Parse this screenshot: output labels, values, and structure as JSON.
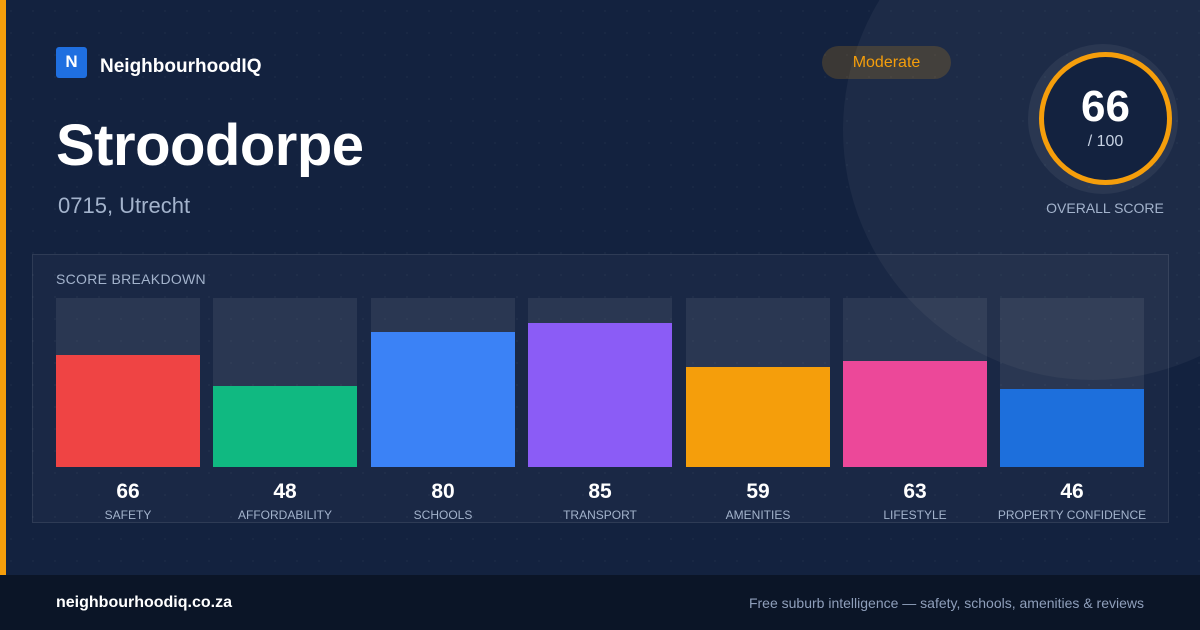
{
  "brand": {
    "logo_letter": "N",
    "name": "NeighbourhoodIQ"
  },
  "suburb": {
    "name": "Stroodorpe",
    "location": "0715, Utrecht"
  },
  "rating": {
    "badge": "Moderate",
    "score": "66",
    "max": "/ 100",
    "label": "OVERALL SCORE"
  },
  "breakdown": {
    "title": "SCORE BREAKDOWN",
    "max": 100,
    "items": [
      {
        "label": "SAFETY",
        "value": 66,
        "color": "#ef4444"
      },
      {
        "label": "AFFORDABILITY",
        "value": 48,
        "color": "#10b981"
      },
      {
        "label": "SCHOOLS",
        "value": 80,
        "color": "#3b82f6"
      },
      {
        "label": "TRANSPORT",
        "value": 85,
        "color": "#8b5cf6"
      },
      {
        "label": "AMENITIES",
        "value": 59,
        "color": "#f59e0b"
      },
      {
        "label": "LIFESTYLE",
        "value": 63,
        "color": "#ec4899"
      },
      {
        "label": "PROPERTY CONFIDENCE",
        "value": 46,
        "color": "#1d6fdc"
      }
    ]
  },
  "footer": {
    "url": "neighbourhoodiq.co.za",
    "tagline": "Free suburb intelligence — safety, schools, amenities & reviews"
  },
  "colors": {
    "accent": "#f59e0b",
    "background": "#13223f",
    "footer": "#0b1527"
  }
}
